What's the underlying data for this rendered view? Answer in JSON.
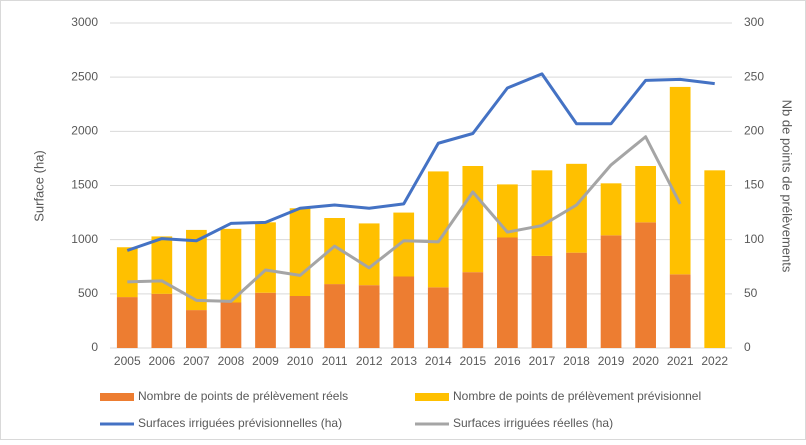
{
  "chart_data": {
    "type": "bar-line",
    "categories": [
      "2005",
      "2006",
      "2007",
      "2008",
      "2009",
      "2010",
      "2011",
      "2012",
      "2013",
      "2014",
      "2015",
      "2016",
      "2017",
      "2018",
      "2019",
      "2020",
      "2021",
      "2022"
    ],
    "series": [
      {
        "name": "Nombre de points de prélèvement réels",
        "type": "bar",
        "axis": "y2",
        "color": "#ed7d31",
        "values": [
          47,
          50,
          35,
          42,
          51,
          48,
          59,
          58,
          66,
          56,
          70,
          102,
          85,
          88,
          104,
          116,
          68,
          0
        ]
      },
      {
        "name": "Nombre de points de prélèvement prévisionnel",
        "type": "bar",
        "axis": "y2",
        "color": "#ffc000",
        "values": [
          46,
          53,
          74,
          68,
          65,
          81,
          61,
          57,
          59,
          107,
          98,
          49,
          79,
          82,
          48,
          52,
          173,
          164
        ]
      },
      {
        "name": "Surfaces irriguées prévisionnelles (ha)",
        "type": "line",
        "axis": "y",
        "color": "#4472c4",
        "values": [
          900,
          1010,
          990,
          1150,
          1160,
          1290,
          1320,
          1290,
          1330,
          1890,
          1980,
          2400,
          2530,
          2070,
          2070,
          2470,
          2480,
          2440
        ]
      },
      {
        "name": "Surfaces irriguées réelles (ha)",
        "type": "line",
        "axis": "y",
        "color": "#a5a5a5",
        "values": [
          610,
          620,
          440,
          430,
          720,
          670,
          940,
          740,
          990,
          980,
          1440,
          1070,
          1130,
          1320,
          1690,
          1950,
          1330,
          null
        ]
      }
    ],
    "y_label": "Surface (ha)",
    "y2_label": "Nb de points de prélèvements",
    "ylim": [
      0,
      3000
    ],
    "yticks": [
      0,
      500,
      1000,
      1500,
      2000,
      2500,
      3000
    ],
    "y2lim": [
      0,
      300
    ],
    "y2ticks": [
      0,
      50,
      100,
      150,
      200,
      250,
      300
    ],
    "grid": true,
    "legend": "bottom"
  }
}
